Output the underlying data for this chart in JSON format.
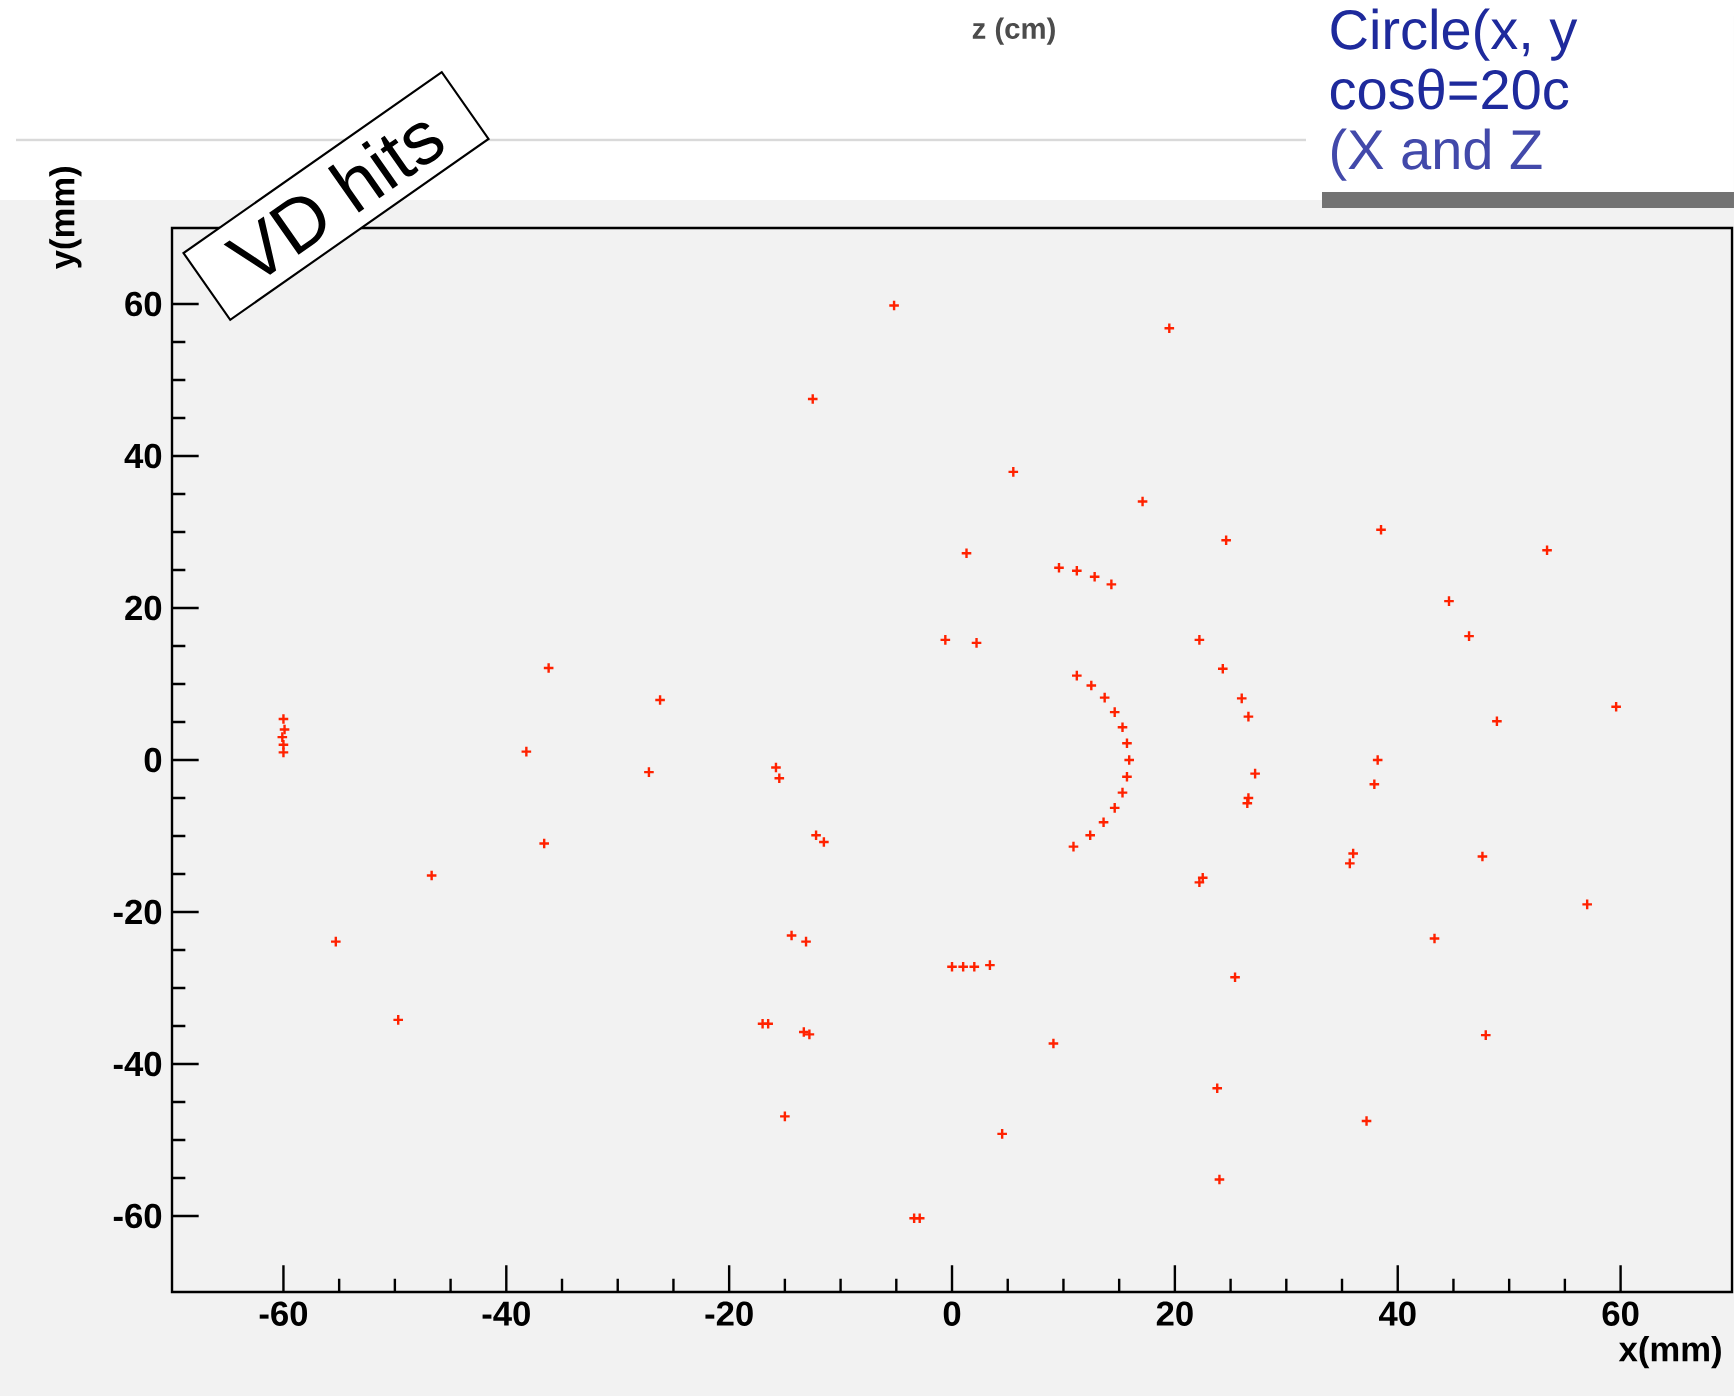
{
  "chart_data": {
    "type": "scatter",
    "xlabel": "x(mm)",
    "ylabel": "y(mm)",
    "x": [
      -5.2,
      -12.5,
      -0.6,
      -36.2,
      -26.2,
      -60.0,
      -59.9,
      -60.1,
      -60.0,
      -60.0,
      -38.2,
      -27.2,
      -15.8,
      -15.5,
      19.5,
      5.5,
      17.1,
      24.6,
      38.5,
      53.4,
      1.3,
      9.6,
      11.2,
      12.8,
      14.3,
      2.2,
      22.2,
      44.6,
      46.4,
      24.3,
      26.0,
      26.6,
      48.9,
      59.6,
      27.2,
      38.2,
      37.9,
      11.2,
      12.5,
      13.7,
      14.6,
      15.3,
      15.7,
      15.9,
      15.7,
      15.3,
      14.6,
      13.6,
      12.4,
      10.9,
      26.5,
      26.6,
      36.0,
      35.7,
      47.6,
      22.2,
      22.5,
      57.0,
      43.3,
      0.0,
      1.0,
      2.0,
      3.4,
      25.4,
      9.1,
      47.9,
      23.8,
      37.2,
      4.5,
      24.0,
      -2.9,
      -3.4,
      -36.6,
      -46.7,
      -12.2,
      -11.5,
      -55.3,
      -14.4,
      -13.1,
      -49.7,
      -16.5,
      -17.0,
      -13.3,
      -12.8,
      -15.0
    ],
    "values": [
      59.8,
      47.5,
      15.8,
      12.1,
      7.9,
      5.4,
      4.0,
      3.0,
      2.0,
      1.0,
      1.1,
      -1.6,
      -1.0,
      -2.4,
      56.8,
      37.9,
      34.0,
      28.9,
      30.3,
      27.6,
      27.2,
      25.3,
      24.9,
      24.1,
      23.1,
      15.4,
      15.8,
      20.9,
      16.3,
      12.0,
      8.1,
      5.7,
      5.1,
      7.0,
      -1.8,
      0.0,
      -3.2,
      11.1,
      9.8,
      8.2,
      6.3,
      4.3,
      2.2,
      0.0,
      -2.2,
      -4.3,
      -6.3,
      -8.2,
      -9.9,
      -11.4,
      -5.7,
      -5.0,
      -12.3,
      -13.6,
      -12.7,
      -16.1,
      -15.5,
      -19.0,
      -23.5,
      -27.2,
      -27.2,
      -27.2,
      -27.0,
      -28.6,
      -37.3,
      -36.2,
      -43.2,
      -47.5,
      -49.2,
      -55.2,
      -60.3,
      -60.3,
      -11.0,
      -15.2,
      -9.9,
      -10.8,
      -23.9,
      -23.1,
      -23.9,
      -34.2,
      -34.7,
      -34.7,
      -35.8,
      -36.1,
      -46.9
    ],
    "color": "#ff2200",
    "marker": "cross",
    "xlim": [
      -70,
      70
    ],
    "ylim": [
      -70,
      70
    ],
    "xticks": [
      -60,
      -40,
      -20,
      0,
      20,
      40,
      60
    ],
    "yticks": [
      -60,
      -40,
      -20,
      0,
      20,
      40,
      60
    ],
    "annotations": [
      "VD hits",
      "z (cm)",
      "Circle(x, y",
      "cosθ=20c",
      "(X and Z"
    ]
  }
}
